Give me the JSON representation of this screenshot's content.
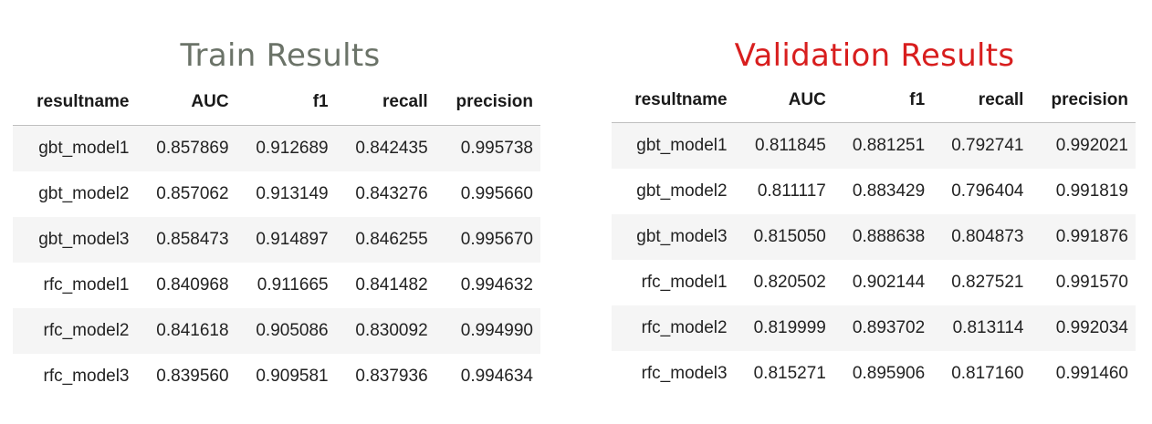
{
  "chart_data": [
    {
      "type": "table",
      "title": "Train Results",
      "title_color": "#6b7368",
      "columns": [
        "resultname",
        "AUC",
        "f1",
        "recall",
        "precision"
      ],
      "rows": [
        [
          "gbt_model1",
          "0.857869",
          "0.912689",
          "0.842435",
          "0.995738"
        ],
        [
          "gbt_model2",
          "0.857062",
          "0.913149",
          "0.843276",
          "0.995660"
        ],
        [
          "gbt_model3",
          "0.858473",
          "0.914897",
          "0.846255",
          "0.995670"
        ],
        [
          "rfc_model1",
          "0.840968",
          "0.911665",
          "0.841482",
          "0.994632"
        ],
        [
          "rfc_model2",
          "0.841618",
          "0.905086",
          "0.830092",
          "0.994990"
        ],
        [
          "rfc_model3",
          "0.839560",
          "0.909581",
          "0.837936",
          "0.994634"
        ]
      ]
    },
    {
      "type": "table",
      "title": "Validation Results",
      "title_color": "#d81e1e",
      "columns": [
        "resultname",
        "AUC",
        "f1",
        "recall",
        "precision"
      ],
      "rows": [
        [
          "gbt_model1",
          "0.811845",
          "0.881251",
          "0.792741",
          "0.992021"
        ],
        [
          "gbt_model2",
          "0.811117",
          "0.883429",
          "0.796404",
          "0.991819"
        ],
        [
          "gbt_model3",
          "0.815050",
          "0.888638",
          "0.804873",
          "0.991876"
        ],
        [
          "rfc_model1",
          "0.820502",
          "0.902144",
          "0.827521",
          "0.991570"
        ],
        [
          "rfc_model2",
          "0.819999",
          "0.893702",
          "0.813114",
          "0.992034"
        ],
        [
          "rfc_model3",
          "0.815271",
          "0.895906",
          "0.817160",
          "0.991460"
        ]
      ]
    }
  ]
}
